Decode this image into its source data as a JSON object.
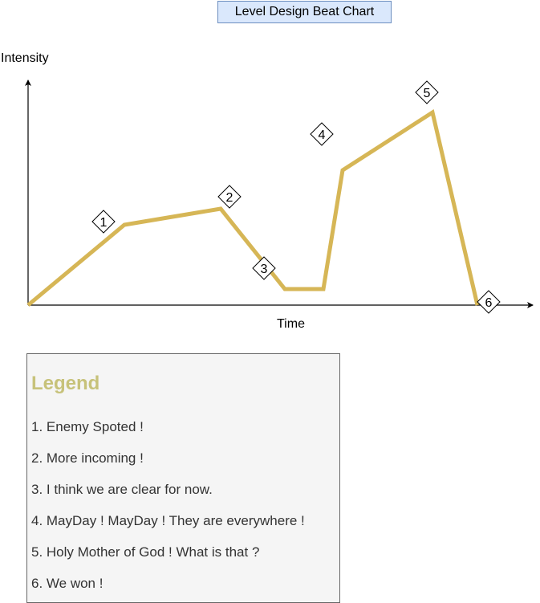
{
  "title": "Level Design Beat Chart",
  "axes": {
    "y_label": "Intensity",
    "x_label": "Time"
  },
  "colors": {
    "title_fill": "#dae8fc",
    "title_stroke": "#6c8ebf",
    "line": "#d6b656",
    "legend_fill": "#f5f5f5",
    "legend_stroke": "#666666",
    "legend_title": "#c7c27a",
    "legend_text": "#333333"
  },
  "beats": [
    {
      "label": "1",
      "time": 1.5,
      "intensity": 1.25
    },
    {
      "label": "2",
      "time": 3.0,
      "intensity": 1.5
    },
    {
      "label": "3",
      "time": 4.0,
      "intensity": 0.25
    },
    {
      "label": "4",
      "time": 4.9,
      "intensity": 2.1
    },
    {
      "label": "5",
      "time": 6.3,
      "intensity": 3.0
    },
    {
      "label": "6",
      "time": 7.0,
      "intensity": 0
    }
  ],
  "chart_data": {
    "type": "line",
    "title": "Level Design Beat Chart",
    "xlabel": "Time",
    "ylabel": "Intensity",
    "x": [
      0,
      1.5,
      3.0,
      4.0,
      4.6,
      4.9,
      6.3,
      7.0
    ],
    "series": [
      {
        "values": [
          0,
          1.25,
          1.5,
          0.25,
          0.25,
          2.1,
          3.0,
          0
        ]
      }
    ],
    "xlim": [
      0,
      7.8
    ],
    "ylim": [
      0,
      3.5
    ],
    "grid": false
  },
  "legend": {
    "title": "Legend",
    "items": [
      "1. Enemy Spoted !",
      "2. More incoming !",
      "3. I think we are clear for now.",
      "4. MayDay ! MayDay ! They are everywhere !",
      "5. Holy Mother of God ! What is that ?",
      "6. We won !"
    ]
  }
}
